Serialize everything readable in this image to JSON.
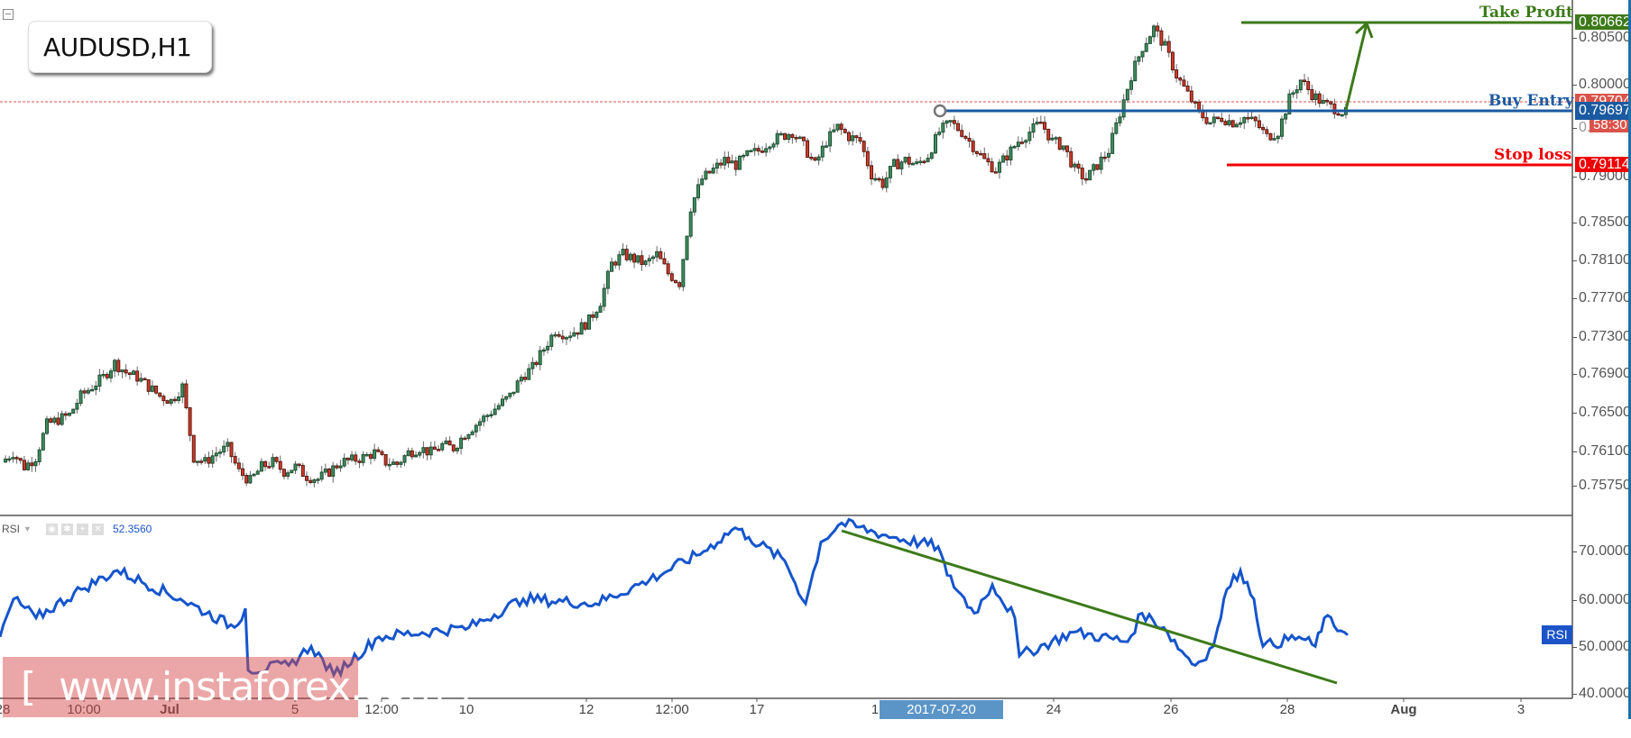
{
  "symbol": {
    "label": "AUDUSD,H1"
  },
  "indicator": {
    "name": "RSI",
    "value": "52.3560",
    "tag": "RSI"
  },
  "levels": {
    "take_profit": {
      "label": "Take Profit",
      "price": "0.80662",
      "color": "#3c7a1a"
    },
    "buy_entry": {
      "label": "Buy Entry",
      "price": "0.79697",
      "color": "#1b5aa0"
    },
    "stop_loss": {
      "label": "Stop loss",
      "price": "0.79114",
      "color": "#f00000"
    },
    "current": {
      "price": "0.79704",
      "countdown": "58:30",
      "color": "#d9534a"
    }
  },
  "cursor_time": "2017-07-20 02:00:00",
  "watermark": "[  www.instaforex.com ]",
  "colors": {
    "up": "#3e8f5e",
    "down": "#d43b2a",
    "rsi": "#1555cc",
    "axis": "#555555"
  },
  "chart_data": [
    {
      "type": "candlestick",
      "title": "AUDUSD,H1",
      "xlabel": "",
      "ylabel": "Price",
      "ylim": [
        0.7558,
        0.8078
      ],
      "grid": false,
      "y_ticks": [
        "0.80500",
        "0.80000",
        "0.79500",
        "0.79000",
        "0.78500",
        "0.78100",
        "0.77700",
        "0.77300",
        "0.76900",
        "0.76500",
        "0.76100",
        "0.75750"
      ],
      "x_ticks": [
        "28",
        "10:00",
        "Jul",
        "5",
        "12:00",
        "10",
        "12",
        "12:00",
        "17",
        "1",
        "24",
        "26",
        "28",
        "Aug",
        "3"
      ],
      "close_series_approx": [
        0.76,
        0.761,
        0.7595,
        0.7605,
        0.764,
        0.7645,
        0.765,
        0.767,
        0.768,
        0.769,
        0.7705,
        0.7695,
        0.769,
        0.768,
        0.767,
        0.7665,
        0.768,
        0.7605,
        0.76,
        0.761,
        0.7615,
        0.759,
        0.758,
        0.7595,
        0.76,
        0.759,
        0.7595,
        0.7585,
        0.7582,
        0.759,
        0.76,
        0.7602,
        0.7605,
        0.761,
        0.76,
        0.7598,
        0.761,
        0.7615,
        0.761,
        0.7618,
        0.7615,
        0.763,
        0.764,
        0.765,
        0.766,
        0.767,
        0.769,
        0.77,
        0.772,
        0.774,
        0.7735,
        0.774,
        0.775,
        0.777,
        0.781,
        0.782,
        0.7815,
        0.781,
        0.782,
        0.78,
        0.779,
        0.787,
        0.79,
        0.791,
        0.792,
        0.7915,
        0.7925,
        0.793,
        0.794,
        0.7945,
        0.795,
        0.7935,
        0.7915,
        0.794,
        0.7955,
        0.7945,
        0.794,
        0.7905,
        0.7895,
        0.7915,
        0.792,
        0.7915,
        0.7925,
        0.795,
        0.796,
        0.795,
        0.7935,
        0.792,
        0.791,
        0.7925,
        0.794,
        0.795,
        0.796,
        0.794,
        0.7935,
        0.791,
        0.79,
        0.7915,
        0.793,
        0.797,
        0.801,
        0.804,
        0.806,
        0.804,
        0.801,
        0.799,
        0.797,
        0.796,
        0.7965,
        0.796,
        0.7965,
        0.796,
        0.7945,
        0.795,
        0.7985,
        0.8005,
        0.799,
        0.798,
        0.7975,
        0.797
      ],
      "annotations": [
        {
          "type": "hline",
          "label": "Take Profit",
          "y": 0.80662
        },
        {
          "type": "hline",
          "label": "Buy Entry",
          "y": 0.79697
        },
        {
          "type": "hline",
          "label": "Stop loss",
          "y": 0.79114
        },
        {
          "type": "arrow",
          "from": "buy entry near 28 Jul",
          "to": "take profit"
        }
      ]
    },
    {
      "type": "line",
      "title": "RSI",
      "series": [
        {
          "name": "RSI",
          "last": 52.356
        }
      ],
      "ylim": [
        39,
        77
      ],
      "y_ticks": [
        "70.0000",
        "60.0000",
        "50.0000",
        "40.0000"
      ],
      "annotations": [
        {
          "type": "trendline",
          "from": [
            "~19 Jul",
            75
          ],
          "to": [
            "~28 Jul",
            47
          ]
        }
      ]
    }
  ]
}
